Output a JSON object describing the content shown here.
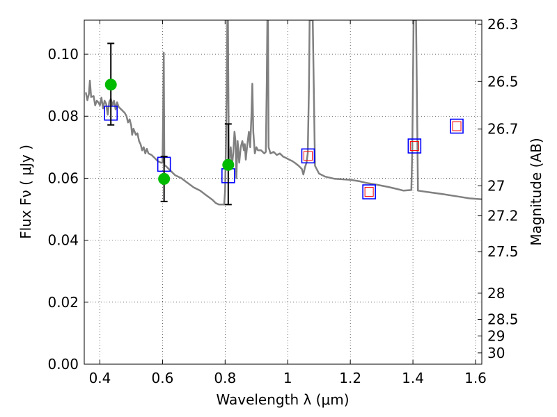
{
  "chart_data": {
    "type": "scatter",
    "xlabel": "Wavelength  λ (μm)",
    "ylabel": "Flux  Fν  ( μJy )",
    "ylabel_right": "Magnitude (AB)",
    "xlim": [
      0.35,
      1.62
    ],
    "ylim": [
      0.0,
      0.111
    ],
    "grid": true,
    "x_ticks": [
      {
        "value": 0.4,
        "label": "0.4"
      },
      {
        "value": 0.6,
        "label": "0.6"
      },
      {
        "value": 0.8,
        "label": "0.8"
      },
      {
        "value": 1.0,
        "label": "1"
      },
      {
        "value": 1.2,
        "label": "1.2"
      },
      {
        "value": 1.4,
        "label": "1.4"
      },
      {
        "value": 1.6,
        "label": "1.6"
      }
    ],
    "y_ticks": [
      {
        "value": 0.0,
        "label": "0.00"
      },
      {
        "value": 0.02,
        "label": "0.02"
      },
      {
        "value": 0.04,
        "label": "0.04"
      },
      {
        "value": 0.06,
        "label": "0.06"
      },
      {
        "value": 0.08,
        "label": "0.08"
      },
      {
        "value": 0.1,
        "label": "0.10"
      }
    ],
    "mag_ticks": [
      {
        "mag": 26.3,
        "label": "26.3"
      },
      {
        "mag": 26.5,
        "label": "26.5"
      },
      {
        "mag": 26.7,
        "label": "26.7"
      },
      {
        "mag": 27.0,
        "label": "27"
      },
      {
        "mag": 27.2,
        "label": "27.2"
      },
      {
        "mag": 27.5,
        "label": "27.5"
      },
      {
        "mag": 28.0,
        "label": "28"
      },
      {
        "mag": 28.5,
        "label": "28.5"
      },
      {
        "mag": 29.0,
        "label": "29"
      },
      {
        "mag": 30.0,
        "label": "30"
      }
    ],
    "series": [
      {
        "name": "model-spectrum",
        "kind": "line",
        "color": "#808080",
        "points": [
          [
            0.355,
            0.0877
          ],
          [
            0.36,
            0.0852
          ],
          [
            0.365,
            0.0872
          ],
          [
            0.368,
            0.0915
          ],
          [
            0.372,
            0.0862
          ],
          [
            0.38,
            0.0865
          ],
          [
            0.385,
            0.0835
          ],
          [
            0.39,
            0.085
          ],
          [
            0.395,
            0.0845
          ],
          [
            0.4,
            0.0835
          ],
          [
            0.405,
            0.086
          ],
          [
            0.41,
            0.0825
          ],
          [
            0.415,
            0.085
          ],
          [
            0.42,
            0.084
          ],
          [
            0.425,
            0.0805
          ],
          [
            0.43,
            0.0847
          ],
          [
            0.435,
            0.0856
          ],
          [
            0.44,
            0.0835
          ],
          [
            0.445,
            0.085
          ],
          [
            0.45,
            0.0822
          ],
          [
            0.455,
            0.0845
          ],
          [
            0.46,
            0.083
          ],
          [
            0.47,
            0.082
          ],
          [
            0.48,
            0.081
          ],
          [
            0.485,
            0.08
          ],
          [
            0.49,
            0.078
          ],
          [
            0.495,
            0.079
          ],
          [
            0.5,
            0.077
          ],
          [
            0.503,
            0.074
          ],
          [
            0.507,
            0.076
          ],
          [
            0.515,
            0.074
          ],
          [
            0.52,
            0.0745
          ],
          [
            0.525,
            0.072
          ],
          [
            0.53,
            0.071
          ],
          [
            0.535,
            0.069
          ],
          [
            0.54,
            0.07
          ],
          [
            0.545,
            0.068
          ],
          [
            0.55,
            0.0695
          ],
          [
            0.555,
            0.068
          ],
          [
            0.565,
            0.0675
          ],
          [
            0.575,
            0.0665
          ],
          [
            0.585,
            0.0655
          ],
          [
            0.595,
            0.065
          ],
          [
            0.6,
            0.065
          ],
          [
            0.602,
            0.08
          ],
          [
            0.604,
            0.1005
          ],
          [
            0.606,
            0.064
          ],
          [
            0.61,
            0.064
          ],
          [
            0.62,
            0.063
          ],
          [
            0.64,
            0.061
          ],
          [
            0.66,
            0.06
          ],
          [
            0.68,
            0.0585
          ],
          [
            0.7,
            0.057
          ],
          [
            0.72,
            0.056
          ],
          [
            0.74,
            0.0545
          ],
          [
            0.76,
            0.053
          ],
          [
            0.77,
            0.052
          ],
          [
            0.78,
            0.0515
          ],
          [
            0.79,
            0.0515
          ],
          [
            0.797,
            0.0515
          ],
          [
            0.8,
            0.056
          ],
          [
            0.805,
            0.085
          ],
          [
            0.807,
            0.111
          ],
          [
            0.809,
            0.111
          ],
          [
            0.812,
            0.065
          ],
          [
            0.818,
            0.07
          ],
          [
            0.822,
            0.064
          ],
          [
            0.826,
            0.068
          ],
          [
            0.83,
            0.075
          ],
          [
            0.833,
            0.072
          ],
          [
            0.836,
            0.06
          ],
          [
            0.84,
            0.072
          ],
          [
            0.845,
            0.065
          ],
          [
            0.85,
            0.07
          ],
          [
            0.855,
            0.072
          ],
          [
            0.86,
            0.069
          ],
          [
            0.863,
            0.071
          ],
          [
            0.866,
            0.066
          ],
          [
            0.87,
            0.07
          ],
          [
            0.876,
            0.075
          ],
          [
            0.88,
            0.07
          ],
          [
            0.884,
            0.08
          ],
          [
            0.887,
            0.0905
          ],
          [
            0.89,
            0.075
          ],
          [
            0.895,
            0.068
          ],
          [
            0.9,
            0.07
          ],
          [
            0.905,
            0.069
          ],
          [
            0.915,
            0.069
          ],
          [
            0.925,
            0.068
          ],
          [
            0.93,
            0.0685
          ],
          [
            0.933,
            0.09
          ],
          [
            0.935,
            0.111
          ],
          [
            0.937,
            0.111
          ],
          [
            0.939,
            0.07
          ],
          [
            0.945,
            0.068
          ],
          [
            0.955,
            0.0685
          ],
          [
            0.965,
            0.0675
          ],
          [
            0.975,
            0.068
          ],
          [
            0.985,
            0.067
          ],
          [
            0.995,
            0.0665
          ],
          [
            1.005,
            0.066
          ],
          [
            1.015,
            0.0655
          ],
          [
            1.025,
            0.0648
          ],
          [
            1.035,
            0.064
          ],
          [
            1.045,
            0.063
          ],
          [
            1.05,
            0.0612
          ],
          [
            1.055,
            0.0635
          ],
          [
            1.06,
            0.065
          ],
          [
            1.064,
            0.068
          ],
          [
            1.068,
            0.09
          ],
          [
            1.07,
            0.111
          ],
          [
            1.08,
            0.111
          ],
          [
            1.087,
            0.064
          ],
          [
            1.1,
            0.0615
          ],
          [
            1.12,
            0.0605
          ],
          [
            1.15,
            0.0598
          ],
          [
            1.2,
            0.0595
          ],
          [
            1.23,
            0.059
          ],
          [
            1.25,
            0.0585
          ],
          [
            1.28,
            0.058
          ],
          [
            1.32,
            0.0572
          ],
          [
            1.35,
            0.0565
          ],
          [
            1.37,
            0.056
          ],
          [
            1.395,
            0.0562
          ],
          [
            1.398,
            0.07
          ],
          [
            1.402,
            0.111
          ],
          [
            1.41,
            0.111
          ],
          [
            1.416,
            0.056
          ],
          [
            1.45,
            0.0555
          ],
          [
            1.5,
            0.0548
          ],
          [
            1.55,
            0.054
          ],
          [
            1.58,
            0.0535
          ],
          [
            1.62,
            0.0532
          ]
        ]
      },
      {
        "name": "model-photometry",
        "kind": "square-marker",
        "color": "#0000ff",
        "points": [
          [
            0.435,
            0.081
          ],
          [
            0.605,
            0.0645
          ],
          [
            0.81,
            0.0608
          ],
          [
            1.065,
            0.0672
          ],
          [
            1.26,
            0.0556
          ],
          [
            1.405,
            0.0704
          ],
          [
            1.54,
            0.0768
          ]
        ]
      },
      {
        "name": "upper-limit-marker",
        "kind": "inner-square-marker",
        "color": "#ff0000",
        "points": [
          [
            1.065,
            0.0672
          ],
          [
            1.26,
            0.0556
          ],
          [
            1.405,
            0.0704
          ],
          [
            1.54,
            0.0768
          ]
        ]
      },
      {
        "name": "observed-photometry",
        "kind": "circle-marker",
        "color": "#00bb00",
        "points": [
          {
            "x": 0.435,
            "y": 0.0902,
            "ylow": 0.0772,
            "yhigh": 0.1035
          },
          {
            "x": 0.605,
            "y": 0.0598,
            "ylow": 0.0525,
            "yhigh": 0.067
          },
          {
            "x": 0.81,
            "y": 0.0643,
            "ylow": 0.0515,
            "yhigh": 0.0775
          }
        ]
      }
    ]
  }
}
